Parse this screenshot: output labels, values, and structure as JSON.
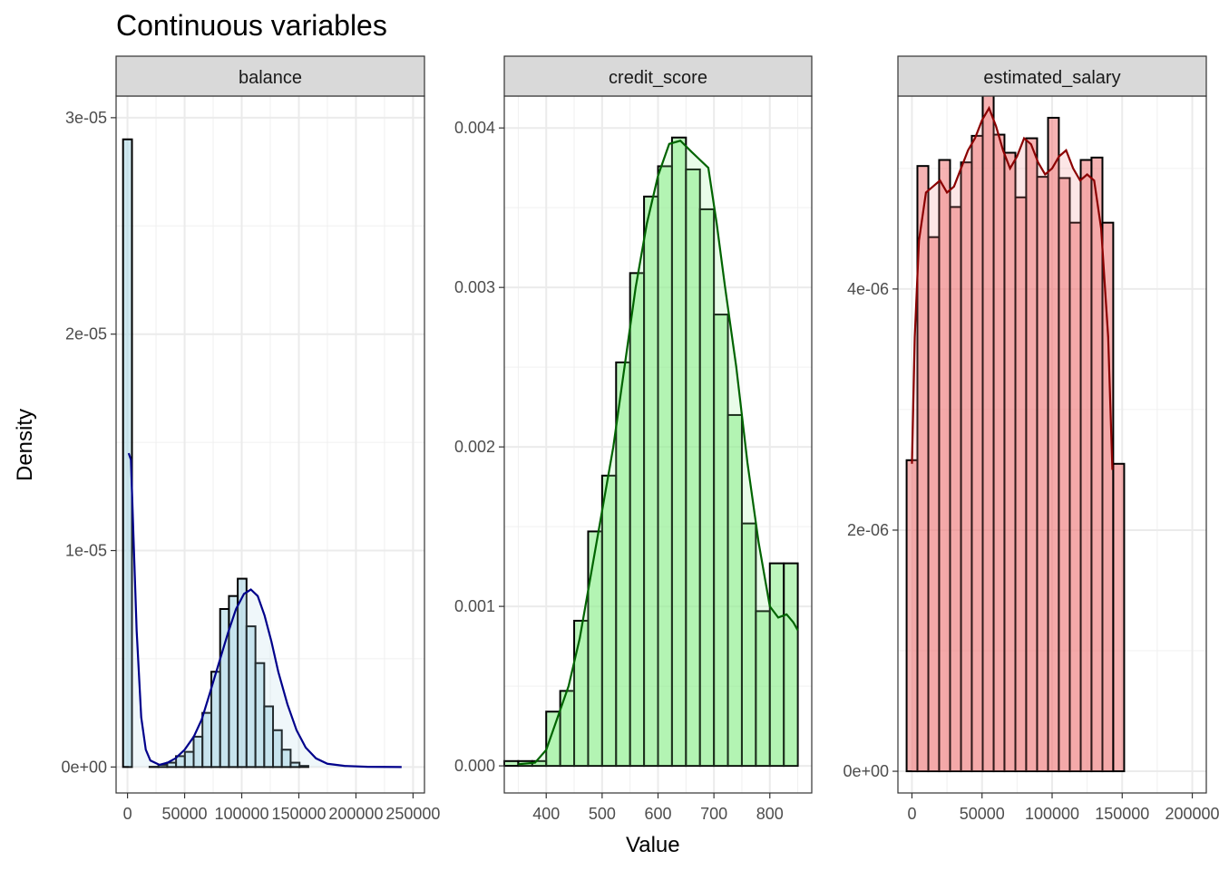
{
  "chart_data": {
    "type": "histogram",
    "title": "Continuous variables",
    "xlabel": "Value",
    "ylabel": "Density",
    "grid": true,
    "legend": "none",
    "facets": [
      {
        "strip": "balance",
        "fill": "#add8e6",
        "line": "#00008b",
        "xlim": [
          -10000,
          260000
        ],
        "ylim": [
          -1.2e-06,
          3.1e-05
        ],
        "xticks": [
          0,
          50000,
          100000,
          150000,
          200000,
          250000
        ],
        "xtick_labels": [
          "0",
          "50000",
          "100000",
          "150000",
          "200000",
          "250000"
        ],
        "yticks": [
          0,
          1e-05,
          2e-05,
          3e-05
        ],
        "ytick_labels": [
          "0e+00",
          "1e-05",
          "2e-05",
          "3e-05"
        ],
        "bins": [
          [
            -3900,
            3900,
            2.9e-05
          ],
          [
            3900,
            11600,
            0.0
          ],
          [
            11600,
            19300,
            0.0
          ],
          [
            19300,
            27000,
            1e-08
          ],
          [
            27000,
            34800,
            1e-07
          ],
          [
            34800,
            42500,
            2e-07
          ],
          [
            42500,
            50200,
            5e-07
          ],
          [
            50200,
            57900,
            7e-07
          ],
          [
            57900,
            65600,
            1.4e-06
          ],
          [
            65600,
            73400,
            2.5e-06
          ],
          [
            73400,
            81100,
            4.4e-06
          ],
          [
            81100,
            88800,
            7.3e-06
          ],
          [
            88800,
            96500,
            7.9e-06
          ],
          [
            96500,
            104200,
            8.7e-06
          ],
          [
            104200,
            112000,
            6.5e-06
          ],
          [
            112000,
            119700,
            4.8e-06
          ],
          [
            119700,
            127400,
            2.8e-06
          ],
          [
            127400,
            135100,
            1.7e-06
          ],
          [
            135100,
            142800,
            8e-07
          ],
          [
            142800,
            150600,
            2e-07
          ],
          [
            150600,
            158300,
            5e-08
          ],
          [
            158300,
            166000,
            0.0
          ],
          [
            166000,
            173700,
            0.0
          ]
        ],
        "density": [
          [
            1000,
            1.45e-05
          ],
          [
            3000,
            1.42e-05
          ],
          [
            5000,
            1.1e-05
          ],
          [
            8000,
            6.3e-06
          ],
          [
            12000,
            2.3e-06
          ],
          [
            16000,
            8e-07
          ],
          [
            20000,
            3e-07
          ],
          [
            28000,
            1e-07
          ],
          [
            35000,
            2e-07
          ],
          [
            42000,
            4e-07
          ],
          [
            50000,
            8e-07
          ],
          [
            58000,
            1.4e-06
          ],
          [
            65000,
            2.2e-06
          ],
          [
            72000,
            3.4e-06
          ],
          [
            80000,
            4.8e-06
          ],
          [
            88000,
            6.2e-06
          ],
          [
            95000,
            7.3e-06
          ],
          [
            102000,
            8e-06
          ],
          [
            108000,
            8.2e-06
          ],
          [
            114000,
            7.9e-06
          ],
          [
            120000,
            7e-06
          ],
          [
            126000,
            5.8e-06
          ],
          [
            132000,
            4.4e-06
          ],
          [
            140000,
            2.9e-06
          ],
          [
            148000,
            1.7e-06
          ],
          [
            156000,
            9e-07
          ],
          [
            165000,
            4e-07
          ],
          [
            175000,
            1.5e-07
          ],
          [
            190000,
            5e-08
          ],
          [
            210000,
            1e-08
          ],
          [
            240000,
            0.0
          ]
        ]
      },
      {
        "strip": "credit_score",
        "fill": "#90ee90",
        "line": "#006400",
        "xlim": [
          325,
          875
        ],
        "ylim": [
          -0.00017,
          0.0042
        ],
        "xticks": [
          400,
          500,
          600,
          700,
          800
        ],
        "xtick_labels": [
          "400",
          "500",
          "600",
          "700",
          "800"
        ],
        "yticks": [
          0,
          0.001,
          0.002,
          0.003,
          0.004
        ],
        "ytick_labels": [
          "0.000",
          "0.001",
          "0.002",
          "0.003",
          "0.004"
        ],
        "bins": [
          [
            325,
            350,
            3e-05
          ],
          [
            350,
            375,
            3e-05
          ],
          [
            375,
            400,
            3e-05
          ],
          [
            400,
            425,
            0.00034
          ],
          [
            425,
            450,
            0.00047
          ],
          [
            450,
            475,
            0.00091
          ],
          [
            475,
            500,
            0.00147
          ],
          [
            500,
            525,
            0.00182
          ],
          [
            525,
            550,
            0.00253
          ],
          [
            550,
            575,
            0.00309
          ],
          [
            575,
            600,
            0.00357
          ],
          [
            600,
            625,
            0.00376
          ],
          [
            625,
            650,
            0.00394
          ],
          [
            650,
            675,
            0.00374
          ],
          [
            675,
            700,
            0.00349
          ],
          [
            700,
            725,
            0.00283
          ],
          [
            725,
            750,
            0.0022
          ],
          [
            750,
            775,
            0.00152
          ],
          [
            775,
            800,
            0.00097
          ],
          [
            800,
            825,
            0.00127
          ],
          [
            825,
            850,
            0.00127
          ]
        ],
        "density": [
          [
            350,
            1e-05
          ],
          [
            380,
            2e-05
          ],
          [
            400,
            0.0001
          ],
          [
            420,
            0.0003
          ],
          [
            440,
            0.0005
          ],
          [
            460,
            0.0008
          ],
          [
            480,
            0.0012
          ],
          [
            500,
            0.0016
          ],
          [
            520,
            0.002
          ],
          [
            540,
            0.0025
          ],
          [
            560,
            0.003
          ],
          [
            580,
            0.0034
          ],
          [
            600,
            0.0037
          ],
          [
            620,
            0.0039
          ],
          [
            640,
            0.00392
          ],
          [
            660,
            0.00385
          ],
          [
            675,
            0.0038
          ],
          [
            690,
            0.00375
          ],
          [
            705,
            0.0034
          ],
          [
            720,
            0.003
          ],
          [
            740,
            0.0025
          ],
          [
            760,
            0.0019
          ],
          [
            780,
            0.0014
          ],
          [
            800,
            0.001
          ],
          [
            815,
            0.00093
          ],
          [
            830,
            0.00095
          ],
          [
            842,
            0.0009
          ],
          [
            850,
            0.00085
          ]
        ]
      },
      {
        "strip": "estimated_salary",
        "fill": "#f08080",
        "line": "#8b0000",
        "xlim": [
          -10000,
          210000
        ],
        "ylim": [
          -1.8e-07,
          5.6e-06
        ],
        "xticks": [
          0,
          50000,
          100000,
          150000,
          200000
        ],
        "xtick_labels": [
          "0",
          "50000",
          "100000",
          "150000",
          "200000"
        ],
        "yticks": [
          0,
          2e-06,
          4e-06
        ],
        "ytick_labels": [
          "0e+00",
          "2e-06",
          "4e-06"
        ],
        "bins": [
          [
            -3800,
            3900,
            2.58e-06
          ],
          [
            3900,
            11700,
            5.02e-06
          ],
          [
            11700,
            19400,
            4.43e-06
          ],
          [
            19400,
            27200,
            5.07e-06
          ],
          [
            27200,
            35000,
            4.68e-06
          ],
          [
            35000,
            42700,
            5.05e-06
          ],
          [
            42700,
            50500,
            5.27e-06
          ],
          [
            50500,
            58300,
            5.65e-06
          ],
          [
            58300,
            66000,
            5.28e-06
          ],
          [
            66000,
            73800,
            5.13e-06
          ],
          [
            73800,
            81500,
            4.76e-06
          ],
          [
            81500,
            89300,
            5.25e-06
          ],
          [
            89300,
            97100,
            4.93e-06
          ],
          [
            97100,
            104800,
            5.42e-06
          ],
          [
            104800,
            112600,
            4.92e-06
          ],
          [
            112600,
            120400,
            4.55e-06
          ],
          [
            120400,
            128100,
            5.07e-06
          ],
          [
            128100,
            135900,
            5.09e-06
          ],
          [
            135900,
            143600,
            4.55e-06
          ],
          [
            143600,
            151400,
            2.55e-06
          ]
        ],
        "density": [
          [
            0,
            2.55e-06
          ],
          [
            2000,
            3.6e-06
          ],
          [
            5000,
            4.4e-06
          ],
          [
            10000,
            4.8e-06
          ],
          [
            15000,
            4.85e-06
          ],
          [
            20000,
            4.9e-06
          ],
          [
            25000,
            4.8e-06
          ],
          [
            30000,
            4.85e-06
          ],
          [
            35000,
            5e-06
          ],
          [
            40000,
            5.15e-06
          ],
          [
            45000,
            5.25e-06
          ],
          [
            50000,
            5.4e-06
          ],
          [
            55000,
            5.5e-06
          ],
          [
            60000,
            5.35e-06
          ],
          [
            65000,
            5.15e-06
          ],
          [
            70000,
            5e-06
          ],
          [
            75000,
            5.1e-06
          ],
          [
            80000,
            5.25e-06
          ],
          [
            85000,
            5.2e-06
          ],
          [
            90000,
            5.05e-06
          ],
          [
            95000,
            4.95e-06
          ],
          [
            100000,
            5e-06
          ],
          [
            105000,
            5.1e-06
          ],
          [
            110000,
            5.15e-06
          ],
          [
            115000,
            5e-06
          ],
          [
            120000,
            4.9e-06
          ],
          [
            125000,
            4.95e-06
          ],
          [
            130000,
            4.9e-06
          ],
          [
            135000,
            4.5e-06
          ],
          [
            140000,
            3.6e-06
          ],
          [
            143000,
            2.5e-06
          ]
        ]
      }
    ]
  }
}
